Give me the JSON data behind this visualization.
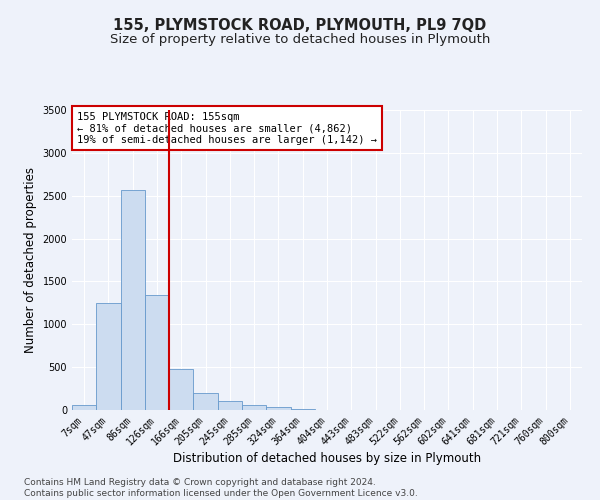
{
  "title": "155, PLYMSTOCK ROAD, PLYMOUTH, PL9 7QD",
  "subtitle": "Size of property relative to detached houses in Plymouth",
  "xlabel": "Distribution of detached houses by size in Plymouth",
  "ylabel": "Number of detached properties",
  "categories": [
    "7sqm",
    "47sqm",
    "86sqm",
    "126sqm",
    "166sqm",
    "205sqm",
    "245sqm",
    "285sqm",
    "324sqm",
    "364sqm",
    "404sqm",
    "443sqm",
    "483sqm",
    "522sqm",
    "562sqm",
    "602sqm",
    "641sqm",
    "681sqm",
    "721sqm",
    "760sqm",
    "800sqm"
  ],
  "values": [
    55,
    1250,
    2570,
    1340,
    480,
    200,
    105,
    55,
    30,
    10,
    5,
    0,
    0,
    0,
    0,
    0,
    0,
    0,
    0,
    0,
    0
  ],
  "bar_color": "#ccdcf0",
  "bar_edge_color": "#6699cc",
  "vline_x_index": 3.5,
  "vline_color": "#cc0000",
  "annotation_text": "155 PLYMSTOCK ROAD: 155sqm\n← 81% of detached houses are smaller (4,862)\n19% of semi-detached houses are larger (1,142) →",
  "annotation_box_color": "#ffffff",
  "annotation_box_edge_color": "#cc0000",
  "ylim": [
    0,
    3500
  ],
  "yticks": [
    0,
    500,
    1000,
    1500,
    2000,
    2500,
    3000,
    3500
  ],
  "footer_line1": "Contains HM Land Registry data © Crown copyright and database right 2024.",
  "footer_line2": "Contains public sector information licensed under the Open Government Licence v3.0.",
  "background_color": "#eef2fa",
  "fig_background_color": "#eef2fa",
  "grid_color": "#ffffff",
  "title_fontsize": 10.5,
  "subtitle_fontsize": 9.5,
  "axis_label_fontsize": 8.5,
  "tick_fontsize": 7,
  "annotation_fontsize": 7.5,
  "footer_fontsize": 6.5
}
